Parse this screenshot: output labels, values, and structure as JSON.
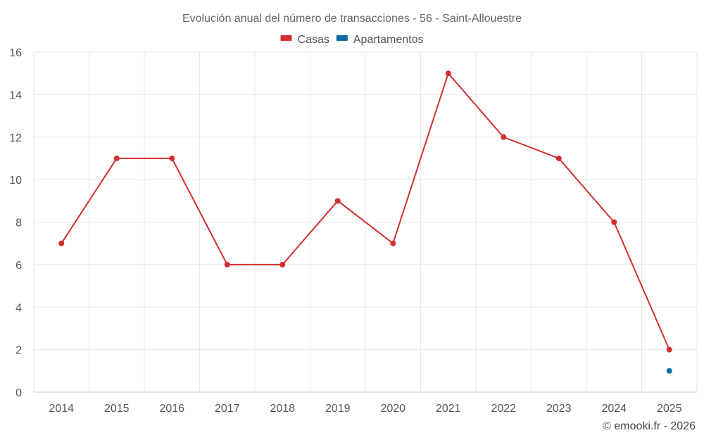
{
  "chart_data": {
    "type": "line",
    "title": "Evolución anual del número de transacciones - 56 - Saint-Allouestre",
    "xlabel": "",
    "ylabel": "",
    "categories": [
      "2014",
      "2015",
      "2016",
      "2017",
      "2018",
      "2019",
      "2020",
      "2021",
      "2022",
      "2023",
      "2024",
      "2025"
    ],
    "ylim": [
      0,
      16
    ],
    "yticks": [
      0,
      2,
      4,
      6,
      8,
      10,
      12,
      14,
      16
    ],
    "grid": true,
    "legend_position": "top-center",
    "series": [
      {
        "name": "Casas",
        "color": "#d32f2f",
        "values": [
          7,
          11,
          11,
          6,
          6,
          9,
          7,
          15,
          12,
          11,
          8,
          2
        ]
      },
      {
        "name": "Apartamentos",
        "color": "#0d6aa8",
        "values": [
          null,
          null,
          null,
          null,
          null,
          null,
          null,
          null,
          null,
          null,
          null,
          1
        ]
      }
    ],
    "credit": "© emooki.fr - 2026"
  }
}
